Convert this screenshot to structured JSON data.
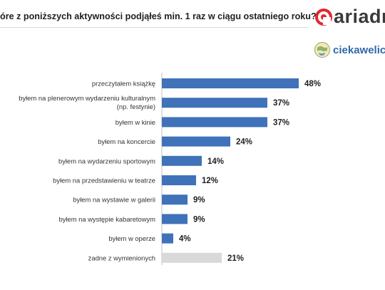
{
  "title": "óre z poniższych aktywności podjąłeś min. 1 raz w ciągu ostatniego roku?",
  "logos": {
    "ariadna": "ariadr",
    "ciekawe": "ciekaweliczb"
  },
  "colors": {
    "bar": "#3f72b9",
    "bar_none": "#d9d9d9",
    "axis": "#bfbfbf"
  },
  "chart_data": {
    "type": "bar",
    "orientation": "horizontal",
    "categories": [
      [
        "przeczytałem książkę"
      ],
      [
        "byłem na plenerowym wydarzeniu kulturalnym",
        "(np. festynie)"
      ],
      [
        "byłem w kinie"
      ],
      [
        "byłem na koncercie"
      ],
      [
        "byłem na wydarzeniu sportowym"
      ],
      [
        "byłem na przedstawieniu w teatrze"
      ],
      [
        "byłem na wystawie w galerii"
      ],
      [
        "byłem na występie kabaretowym"
      ],
      [
        "byłem w operze"
      ],
      [
        "żadne z wymienionych"
      ]
    ],
    "values": [
      48,
      37,
      37,
      24,
      14,
      12,
      9,
      9,
      4,
      21
    ],
    "labels": [
      "48%",
      "37%",
      "37%",
      "24%",
      "14%",
      "12%",
      "9%",
      "9%",
      "4%",
      "21%"
    ],
    "highlight": [
      false,
      false,
      false,
      false,
      false,
      false,
      false,
      false,
      false,
      true
    ],
    "unit": "%",
    "xlim": [
      0,
      48
    ]
  }
}
